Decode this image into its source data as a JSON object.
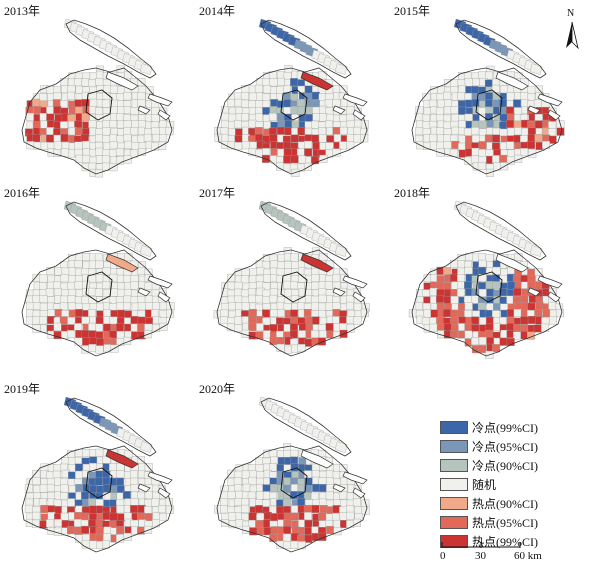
{
  "panels": [
    {
      "year": "2013年",
      "hot": [
        0.35,
        0.2,
        0.05
      ],
      "cold": [
        0.05,
        0.06,
        0.04
      ],
      "cold_mode": "none",
      "hot_mode": "sw"
    },
    {
      "year": "2014年",
      "hot": [
        0.55,
        0.25,
        0.05
      ],
      "cold": [
        0.25,
        0.1,
        0.05
      ],
      "cold_mode": "north_island",
      "hot_mode": "south"
    },
    {
      "year": "2015年",
      "hot": [
        0.4,
        0.2,
        0.05
      ],
      "cold": [
        0.3,
        0.12,
        0.08
      ],
      "cold_mode": "north_island",
      "hot_mode": "east"
    },
    {
      "year": "2016年",
      "hot": [
        0.45,
        0.4,
        0.25
      ],
      "cold": [
        0.25,
        0.1,
        0.25
      ],
      "cold_mode": "island_green",
      "hot_mode": "south"
    },
    {
      "year": "2017年",
      "hot": [
        0.4,
        0.4,
        0.3
      ],
      "cold": [
        0.2,
        0.12,
        0.2
      ],
      "cold_mode": "island_green",
      "hot_mode": "south"
    },
    {
      "year": "2018年",
      "hot": [
        0.3,
        0.35,
        0.35
      ],
      "cold": [
        0.35,
        0.12,
        0.05
      ],
      "cold_mode": "center",
      "hot_mode": "ring"
    },
    {
      "year": "2019年",
      "hot": [
        0.4,
        0.3,
        0.25
      ],
      "cold": [
        0.35,
        0.2,
        0.05
      ],
      "cold_mode": "north_island",
      "hot_mode": "south"
    },
    {
      "year": "2020年",
      "hot": [
        0.4,
        0.25,
        0.2
      ],
      "cold": [
        0.25,
        0.12,
        0.05
      ],
      "cold_mode": "center",
      "hot_mode": "south"
    }
  ],
  "north_label": "N",
  "legend": [
    {
      "label": "冷点(99%CI)",
      "color": "#3d66a8"
    },
    {
      "label": "冷点(95%CI)",
      "color": "#7b97b8"
    },
    {
      "label": "冷点(90%CI)",
      "color": "#b5c4bc"
    },
    {
      "label": "随机",
      "color": "#f0f0ec"
    },
    {
      "label": "热点(90%CI)",
      "color": "#f2a98a"
    },
    {
      "label": "热点(95%CI)",
      "color": "#e2685a"
    },
    {
      "label": "热点(99%CI)",
      "color": "#cc3333"
    }
  ],
  "scale": {
    "t0": "0",
    "t1": "30",
    "t2": "60 km"
  }
}
